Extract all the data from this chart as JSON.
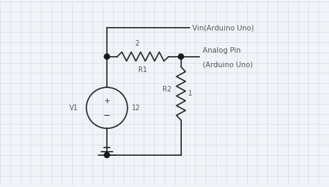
{
  "bg_color": "#f0f4f8",
  "line_color": "#2a2a2a",
  "dot_color": "#1a1a1a",
  "text_color": "#555555",
  "label_vin": "Vin(Arduino Uno)",
  "label_analog": "Analog Pin",
  "label_analog2": "(Arduino Uno)",
  "label_v1": "V1",
  "label_12": "12",
  "label_r1": "R1",
  "label_r2": "R2",
  "label_node2": "2",
  "label_node1": "1",
  "grid_color": "#c8d4e0",
  "grid_step": 0.5
}
